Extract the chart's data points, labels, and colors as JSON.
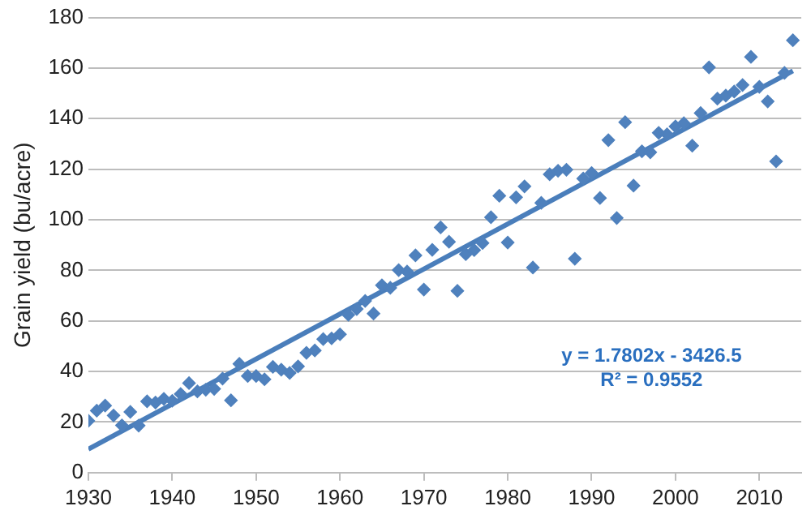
{
  "chart_data": {
    "type": "scatter",
    "ylabel": "Grain yield (bu/acre)",
    "x": [
      1930,
      1931,
      1932,
      1933,
      1934,
      1935,
      1936,
      1937,
      1938,
      1939,
      1940,
      1941,
      1942,
      1943,
      1944,
      1945,
      1946,
      1947,
      1948,
      1949,
      1950,
      1951,
      1952,
      1953,
      1954,
      1955,
      1956,
      1957,
      1958,
      1959,
      1960,
      1961,
      1962,
      1963,
      1964,
      1965,
      1966,
      1967,
      1968,
      1969,
      1970,
      1971,
      1972,
      1973,
      1974,
      1975,
      1976,
      1977,
      1978,
      1979,
      1980,
      1981,
      1982,
      1983,
      1984,
      1985,
      1986,
      1987,
      1988,
      1989,
      1990,
      1991,
      1992,
      1993,
      1994,
      1995,
      1996,
      1997,
      1998,
      1999,
      2000,
      2001,
      2002,
      2003,
      2004,
      2005,
      2006,
      2007,
      2008,
      2009,
      2010,
      2011,
      2012,
      2013,
      2014
    ],
    "series": [
      {
        "color": "#4f81bd",
        "marker": "diamond",
        "values": [
          20.5,
          24.5,
          26.5,
          22.6,
          18.7,
          24,
          18.6,
          28.2,
          27.7,
          29.2,
          28.4,
          31.1,
          35.4,
          32.1,
          32.8,
          33.1,
          37.2,
          28.6,
          43,
          38.2,
          38.2,
          36.9,
          41.8,
          40.7,
          39.4,
          42,
          47.4,
          48.3,
          52.8,
          53.1,
          54.7,
          62.4,
          64.7,
          67.9,
          62.9,
          74.1,
          73.1,
          80.1,
          79.5,
          85.9,
          72.4,
          88.1,
          97,
          91.3,
          71.9,
          86.4,
          88,
          90.8,
          101,
          109.5,
          91,
          108.9,
          113.2,
          81.1,
          106.7,
          118,
          119.4,
          119.8,
          84.6,
          116.3,
          118.5,
          108.6,
          131.5,
          100.7,
          138.6,
          113.5,
          127.1,
          126.7,
          134.4,
          133.8,
          136.9,
          138.2,
          129.3,
          142.2,
          160.3,
          147.9,
          149.1,
          150.7,
          153.3,
          164.4,
          152.6,
          146.8,
          123.1,
          158.1,
          171
        ]
      },
      {
        "type": "line",
        "color": "#4a7ebb",
        "marker": "none",
        "line_style": "solid",
        "x": [
          1930,
          2014
        ],
        "values": [
          9.3,
          158.9
        ]
      }
    ],
    "xlim": [
      1930,
      2015
    ],
    "xticks": [
      1930,
      1940,
      1950,
      1960,
      1970,
      1980,
      1990,
      2000,
      2010
    ],
    "ylim": [
      0,
      180
    ],
    "yticks": [
      0,
      20,
      40,
      60,
      80,
      100,
      120,
      140,
      160,
      180
    ],
    "grid": "y",
    "legend": false,
    "annotations": [
      "y = 1.7802x - 3426.5",
      "R² = 0.9552"
    ]
  }
}
